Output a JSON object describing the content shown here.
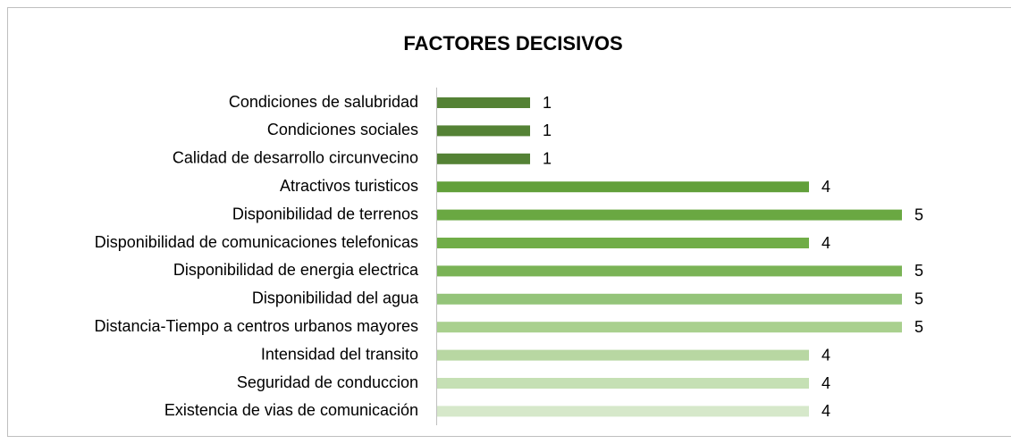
{
  "chart_data": {
    "type": "bar",
    "orientation": "horizontal",
    "title": "FACTORES DECISIVOS",
    "categories": [
      "Condiciones de salubridad",
      "Condiciones sociales",
      "Calidad de desarrollo circunvecino",
      "Atractivos turisticos",
      "Disponibilidad de terrenos",
      "Disponibilidad de comunicaciones telefonicas",
      "Disponibilidad de energia electrica",
      "Disponibilidad del agua",
      "Distancia-Tiempo a centros urbanos mayores",
      "Intensidad del transito",
      "Seguridad de conduccion",
      "Existencia de vias de comunicación"
    ],
    "values": [
      1,
      1,
      1,
      4,
      5,
      4,
      5,
      5,
      5,
      4,
      4,
      4
    ],
    "colors": [
      "#548235",
      "#548235",
      "#548235",
      "#62a03a",
      "#6aa842",
      "#70ad47",
      "#7ab356",
      "#94c47a",
      "#a9d08e",
      "#b8d7a2",
      "#c5e0b4",
      "#d6e8ca"
    ],
    "xlim": [
      0,
      5
    ]
  }
}
